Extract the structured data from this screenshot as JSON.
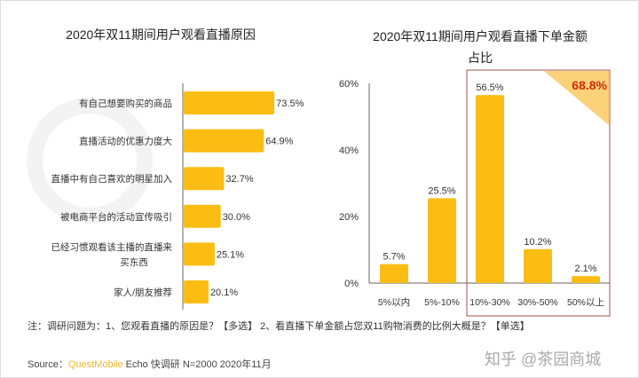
{
  "chart_data": [
    {
      "type": "bar",
      "orientation": "horizontal",
      "title": "2020年双11期间用户观看直播原因",
      "categories": [
        "有自己想要购买的商品",
        "直播活动的优惠力度大",
        "直播中有自己喜欢的明星加入",
        "被电商平台的活动宣传吸引",
        "已经习惯观看该主播的直播来买东西",
        "家人/朋友推荐"
      ],
      "labels_wrapped": [
        [
          "有自己想要购买的商品"
        ],
        [
          "直播活动的优惠力度大"
        ],
        [
          "直播中有自己喜欢的明星加入"
        ],
        [
          "被电商平台的活动宣传吸引"
        ],
        [
          "已经习惯观看该主播的直播来",
          "买东西"
        ],
        [
          "家人/朋友推荐"
        ]
      ],
      "values": [
        73.5,
        64.9,
        32.7,
        30.0,
        25.1,
        20.1
      ],
      "value_labels": [
        "73.5%",
        "64.9%",
        "32.7%",
        "30.0%",
        "25.1%",
        "20.1%"
      ]
    },
    {
      "type": "bar",
      "title_lines": [
        "2020年双11期间用户观看直播下单金额",
        "占比"
      ],
      "categories": [
        "5%以内",
        "5%-10%",
        "10%-30%",
        "30%-50%",
        "50%以上"
      ],
      "values": [
        5.7,
        25.5,
        56.5,
        10.2,
        2.1
      ],
      "value_labels": [
        "5.7%",
        "25.5%",
        "56.5%",
        "10.2%",
        "2.1%"
      ],
      "ylim": [
        0,
        60
      ],
      "yticks": [
        "0%",
        "20%",
        "40%",
        "60%"
      ],
      "ytick_values": [
        0,
        20,
        40,
        60
      ],
      "highlight": {
        "categories": [
          "10%-30%",
          "30%-50%",
          "50%以上"
        ],
        "label": "68.8%"
      }
    }
  ],
  "colors": {
    "bar": "#fbbd14",
    "highlight_box": "#a05050",
    "highlight_text": "#d42a0a",
    "corner": "#fbd27a"
  },
  "watermark": "QUEST MOBILE",
  "note": "注：调研问题为：1、您观看直播的原因是？【多选】 2、看直播下单金额占您双11购物消费的比例大概是？【单选】",
  "source": {
    "prefix": "Source：",
    "brand": "QuestMobile",
    "rest": " Echo 快调研 N=2000 2020年11月"
  },
  "credit": "知乎 @茶园商城"
}
